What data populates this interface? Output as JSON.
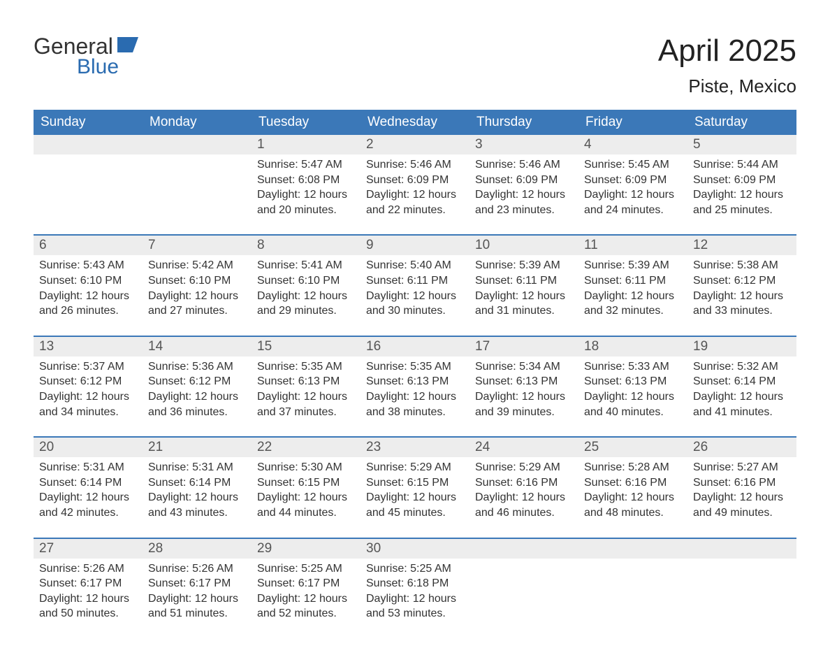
{
  "logo": {
    "text_top": "General",
    "text_bottom": "Blue",
    "color_top": "#333333",
    "color_bottom": "#2a6bb0",
    "icon_color": "#2a6bb0"
  },
  "title": {
    "month": "April 2025",
    "location": "Piste, Mexico"
  },
  "colors": {
    "header_bg": "#3b78b8",
    "header_text": "#ffffff",
    "daynum_bg": "#ededed",
    "daynum_text": "#555555",
    "body_bg": "#ffffff",
    "body_text": "#333333",
    "week_border": "#3b78b8"
  },
  "day_headers": [
    "Sunday",
    "Monday",
    "Tuesday",
    "Wednesday",
    "Thursday",
    "Friday",
    "Saturday"
  ],
  "weeks": [
    [
      {
        "day": "",
        "sunrise": "",
        "sunset": "",
        "daylight1": "",
        "daylight2": ""
      },
      {
        "day": "",
        "sunrise": "",
        "sunset": "",
        "daylight1": "",
        "daylight2": ""
      },
      {
        "day": "1",
        "sunrise": "Sunrise: 5:47 AM",
        "sunset": "Sunset: 6:08 PM",
        "daylight1": "Daylight: 12 hours",
        "daylight2": "and 20 minutes."
      },
      {
        "day": "2",
        "sunrise": "Sunrise: 5:46 AM",
        "sunset": "Sunset: 6:09 PM",
        "daylight1": "Daylight: 12 hours",
        "daylight2": "and 22 minutes."
      },
      {
        "day": "3",
        "sunrise": "Sunrise: 5:46 AM",
        "sunset": "Sunset: 6:09 PM",
        "daylight1": "Daylight: 12 hours",
        "daylight2": "and 23 minutes."
      },
      {
        "day": "4",
        "sunrise": "Sunrise: 5:45 AM",
        "sunset": "Sunset: 6:09 PM",
        "daylight1": "Daylight: 12 hours",
        "daylight2": "and 24 minutes."
      },
      {
        "day": "5",
        "sunrise": "Sunrise: 5:44 AM",
        "sunset": "Sunset: 6:09 PM",
        "daylight1": "Daylight: 12 hours",
        "daylight2": "and 25 minutes."
      }
    ],
    [
      {
        "day": "6",
        "sunrise": "Sunrise: 5:43 AM",
        "sunset": "Sunset: 6:10 PM",
        "daylight1": "Daylight: 12 hours",
        "daylight2": "and 26 minutes."
      },
      {
        "day": "7",
        "sunrise": "Sunrise: 5:42 AM",
        "sunset": "Sunset: 6:10 PM",
        "daylight1": "Daylight: 12 hours",
        "daylight2": "and 27 minutes."
      },
      {
        "day": "8",
        "sunrise": "Sunrise: 5:41 AM",
        "sunset": "Sunset: 6:10 PM",
        "daylight1": "Daylight: 12 hours",
        "daylight2": "and 29 minutes."
      },
      {
        "day": "9",
        "sunrise": "Sunrise: 5:40 AM",
        "sunset": "Sunset: 6:11 PM",
        "daylight1": "Daylight: 12 hours",
        "daylight2": "and 30 minutes."
      },
      {
        "day": "10",
        "sunrise": "Sunrise: 5:39 AM",
        "sunset": "Sunset: 6:11 PM",
        "daylight1": "Daylight: 12 hours",
        "daylight2": "and 31 minutes."
      },
      {
        "day": "11",
        "sunrise": "Sunrise: 5:39 AM",
        "sunset": "Sunset: 6:11 PM",
        "daylight1": "Daylight: 12 hours",
        "daylight2": "and 32 minutes."
      },
      {
        "day": "12",
        "sunrise": "Sunrise: 5:38 AM",
        "sunset": "Sunset: 6:12 PM",
        "daylight1": "Daylight: 12 hours",
        "daylight2": "and 33 minutes."
      }
    ],
    [
      {
        "day": "13",
        "sunrise": "Sunrise: 5:37 AM",
        "sunset": "Sunset: 6:12 PM",
        "daylight1": "Daylight: 12 hours",
        "daylight2": "and 34 minutes."
      },
      {
        "day": "14",
        "sunrise": "Sunrise: 5:36 AM",
        "sunset": "Sunset: 6:12 PM",
        "daylight1": "Daylight: 12 hours",
        "daylight2": "and 36 minutes."
      },
      {
        "day": "15",
        "sunrise": "Sunrise: 5:35 AM",
        "sunset": "Sunset: 6:13 PM",
        "daylight1": "Daylight: 12 hours",
        "daylight2": "and 37 minutes."
      },
      {
        "day": "16",
        "sunrise": "Sunrise: 5:35 AM",
        "sunset": "Sunset: 6:13 PM",
        "daylight1": "Daylight: 12 hours",
        "daylight2": "and 38 minutes."
      },
      {
        "day": "17",
        "sunrise": "Sunrise: 5:34 AM",
        "sunset": "Sunset: 6:13 PM",
        "daylight1": "Daylight: 12 hours",
        "daylight2": "and 39 minutes."
      },
      {
        "day": "18",
        "sunrise": "Sunrise: 5:33 AM",
        "sunset": "Sunset: 6:13 PM",
        "daylight1": "Daylight: 12 hours",
        "daylight2": "and 40 minutes."
      },
      {
        "day": "19",
        "sunrise": "Sunrise: 5:32 AM",
        "sunset": "Sunset: 6:14 PM",
        "daylight1": "Daylight: 12 hours",
        "daylight2": "and 41 minutes."
      }
    ],
    [
      {
        "day": "20",
        "sunrise": "Sunrise: 5:31 AM",
        "sunset": "Sunset: 6:14 PM",
        "daylight1": "Daylight: 12 hours",
        "daylight2": "and 42 minutes."
      },
      {
        "day": "21",
        "sunrise": "Sunrise: 5:31 AM",
        "sunset": "Sunset: 6:14 PM",
        "daylight1": "Daylight: 12 hours",
        "daylight2": "and 43 minutes."
      },
      {
        "day": "22",
        "sunrise": "Sunrise: 5:30 AM",
        "sunset": "Sunset: 6:15 PM",
        "daylight1": "Daylight: 12 hours",
        "daylight2": "and 44 minutes."
      },
      {
        "day": "23",
        "sunrise": "Sunrise: 5:29 AM",
        "sunset": "Sunset: 6:15 PM",
        "daylight1": "Daylight: 12 hours",
        "daylight2": "and 45 minutes."
      },
      {
        "day": "24",
        "sunrise": "Sunrise: 5:29 AM",
        "sunset": "Sunset: 6:16 PM",
        "daylight1": "Daylight: 12 hours",
        "daylight2": "and 46 minutes."
      },
      {
        "day": "25",
        "sunrise": "Sunrise: 5:28 AM",
        "sunset": "Sunset: 6:16 PM",
        "daylight1": "Daylight: 12 hours",
        "daylight2": "and 48 minutes."
      },
      {
        "day": "26",
        "sunrise": "Sunrise: 5:27 AM",
        "sunset": "Sunset: 6:16 PM",
        "daylight1": "Daylight: 12 hours",
        "daylight2": "and 49 minutes."
      }
    ],
    [
      {
        "day": "27",
        "sunrise": "Sunrise: 5:26 AM",
        "sunset": "Sunset: 6:17 PM",
        "daylight1": "Daylight: 12 hours",
        "daylight2": "and 50 minutes."
      },
      {
        "day": "28",
        "sunrise": "Sunrise: 5:26 AM",
        "sunset": "Sunset: 6:17 PM",
        "daylight1": "Daylight: 12 hours",
        "daylight2": "and 51 minutes."
      },
      {
        "day": "29",
        "sunrise": "Sunrise: 5:25 AM",
        "sunset": "Sunset: 6:17 PM",
        "daylight1": "Daylight: 12 hours",
        "daylight2": "and 52 minutes."
      },
      {
        "day": "30",
        "sunrise": "Sunrise: 5:25 AM",
        "sunset": "Sunset: 6:18 PM",
        "daylight1": "Daylight: 12 hours",
        "daylight2": "and 53 minutes."
      },
      {
        "day": "",
        "sunrise": "",
        "sunset": "",
        "daylight1": "",
        "daylight2": ""
      },
      {
        "day": "",
        "sunrise": "",
        "sunset": "",
        "daylight1": "",
        "daylight2": ""
      },
      {
        "day": "",
        "sunrise": "",
        "sunset": "",
        "daylight1": "",
        "daylight2": ""
      }
    ]
  ]
}
